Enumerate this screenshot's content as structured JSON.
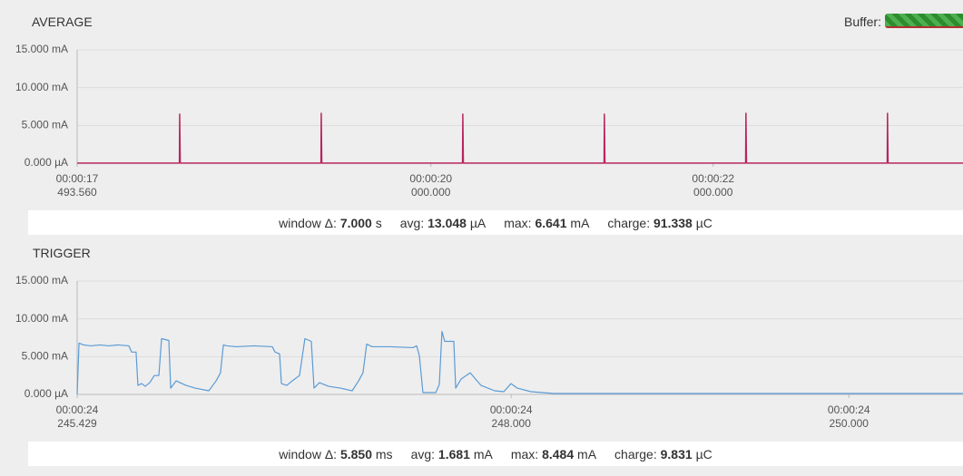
{
  "header": {
    "buffer_label": "Buffer:"
  },
  "chart_data": [
    {
      "type": "line",
      "title": "AVERAGE",
      "color": "#b8255f",
      "grid": true,
      "x": [
        17.49356,
        18.218,
        18.22,
        18.224,
        19.221,
        19.223,
        19.227,
        20.224,
        20.226,
        20.23,
        21.227,
        21.229,
        21.233,
        22.23,
        22.232,
        22.236,
        23.233,
        23.235,
        23.239,
        23.77
      ],
      "values": [
        0.013,
        0.013,
        6.5,
        0.013,
        0.013,
        6.6,
        0.013,
        0.013,
        6.5,
        0.013,
        0.013,
        6.5,
        0.013,
        0.013,
        6.6,
        0.013,
        0.013,
        6.6,
        0.013,
        0.013
      ],
      "xlim": [
        17.49356,
        23.77
      ],
      "xticks": [
        {
          "value": 17.49356,
          "label": "00:00:17\n493.560"
        },
        {
          "value": 20,
          "label": "00:00:20\n000.000"
        },
        {
          "value": 22,
          "label": "00:00:22\n000.000"
        }
      ],
      "ylim": [
        0,
        15
      ],
      "yticks": [
        {
          "value": 0,
          "label": "0.000 µA"
        },
        {
          "value": 5,
          "label": "5.000 mA"
        },
        {
          "value": 10,
          "label": "10.000 mA"
        },
        {
          "value": 15,
          "label": "15.000 mA"
        }
      ],
      "stats": [
        {
          "label": "window Δ:",
          "value": "7.000",
          "unit": "s"
        },
        {
          "label": "avg:",
          "value": "13.048",
          "unit": "µA"
        },
        {
          "label": "max:",
          "value": "6.641",
          "unit": "mA"
        },
        {
          "label": "charge:",
          "value": "91.338",
          "unit": "µC"
        }
      ]
    },
    {
      "type": "line",
      "title": "TRIGGER",
      "color": "#5b9bd5",
      "grid": true,
      "x": [
        24.245429,
        24.24544,
        24.245467,
        24.24551,
        24.245563,
        24.245617,
        24.245671,
        24.245735,
        24.245752,
        24.245778,
        24.245789,
        24.245811,
        24.245832,
        24.245859,
        24.245886,
        24.245913,
        24.245929,
        24.245972,
        24.245983,
        24.246015,
        24.246074,
        24.246128,
        24.246209,
        24.246252,
        24.246278,
        24.246295,
        24.246316,
        24.24637,
        24.246477,
        24.246585,
        24.246601,
        24.246628,
        24.246639,
        24.246671,
        24.246703,
        24.246746,
        24.246778,
        24.246816,
        24.246832,
        24.246864,
        24.246918,
        24.246988,
        24.247058,
        24.247096,
        24.247122,
        24.247144,
        24.247176,
        24.247284,
        24.247418,
        24.24744,
        24.247456,
        24.247477,
        24.247553,
        24.247574,
        24.24759,
        24.247606,
        24.24766,
        24.247671,
        24.247703,
        24.247757,
        24.247821,
        24.247902,
        24.247956,
        24.247999,
        24.248036,
        24.248117,
        24.248252,
        24.250676
      ],
      "values": [
        0,
        6.79,
        6.55,
        6.43,
        6.55,
        6.43,
        6.55,
        6.43,
        5.6,
        5.6,
        1.19,
        1.43,
        1.07,
        1.55,
        2.5,
        2.5,
        7.38,
        7.14,
        0.83,
        1.79,
        1.19,
        0.83,
        0.48,
        1.79,
        2.86,
        6.55,
        6.43,
        6.31,
        6.43,
        6.31,
        5.6,
        5.36,
        1.43,
        1.19,
        1.79,
        2.5,
        7.38,
        7.02,
        0.83,
        1.55,
        1.07,
        0.83,
        0.48,
        1.79,
        2.86,
        6.67,
        6.31,
        6.31,
        6.19,
        6.43,
        5.12,
        0.24,
        0.24,
        1.31,
        8.33,
        7.02,
        7.02,
        0.83,
        2.02,
        2.86,
        1.19,
        0.48,
        0.36,
        1.43,
        0.83,
        0.36,
        0.12,
        0.12
      ],
      "xlim": [
        24.245429,
        24.250676
      ],
      "xticks": [
        {
          "value": 24.245429,
          "label": "00:00:24\n245.429"
        },
        {
          "value": 24.248,
          "label": "00:00:24\n248.000"
        },
        {
          "value": 24.25,
          "label": "00:00:24\n250.000"
        }
      ],
      "ylim": [
        0,
        15
      ],
      "yticks": [
        {
          "value": 0,
          "label": "0.000 µA"
        },
        {
          "value": 5,
          "label": "5.000 mA"
        },
        {
          "value": 10,
          "label": "10.000 mA"
        },
        {
          "value": 15,
          "label": "15.000 mA"
        }
      ],
      "stats": [
        {
          "label": "window Δ:",
          "value": "5.850",
          "unit": "ms"
        },
        {
          "label": "avg:",
          "value": "1.681",
          "unit": "mA"
        },
        {
          "label": "max:",
          "value": "8.484",
          "unit": "mA"
        },
        {
          "label": "charge:",
          "value": "9.831",
          "unit": "µC"
        }
      ]
    }
  ]
}
